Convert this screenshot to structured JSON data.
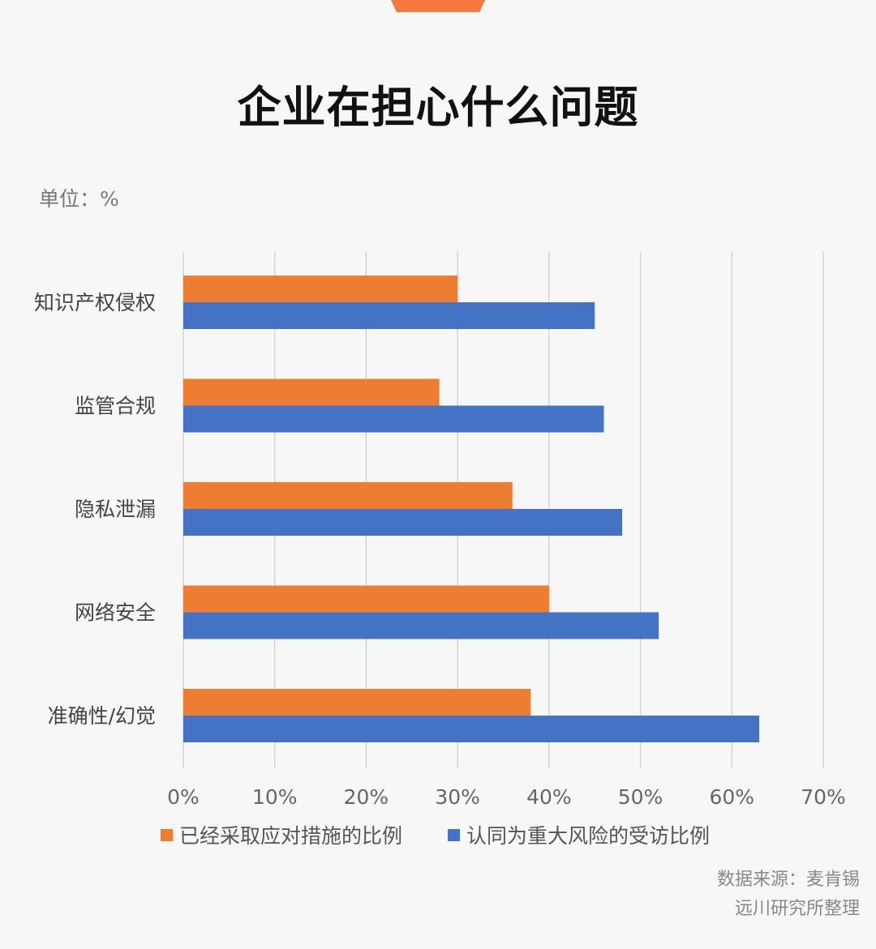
{
  "header": {
    "title": "企业在担心什么问题",
    "unit": "单位：%",
    "accent_color": "#f5783c"
  },
  "chart_data": {
    "type": "bar",
    "orientation": "horizontal",
    "categories": [
      "知识产权侵权",
      "监管合规",
      "隐私泄漏",
      "网络安全",
      "准确性/幻觉"
    ],
    "series": [
      {
        "name": "已经采取应对措施的比例",
        "color": "#ed7d31",
        "values": [
          30,
          28,
          36,
          40,
          38
        ]
      },
      {
        "name": "认同为重大风险的受访比例",
        "color": "#4472c4",
        "values": [
          45,
          46,
          48,
          52,
          63
        ]
      }
    ],
    "xlim": [
      0,
      70
    ],
    "x_ticks": [
      "0%",
      "10%",
      "20%",
      "30%",
      "40%",
      "50%",
      "60%",
      "70%"
    ],
    "grid": true,
    "legend_position": "bottom"
  },
  "footer": {
    "source": "数据来源：麦肯锡",
    "compiled_by": "远川研究所整理"
  }
}
